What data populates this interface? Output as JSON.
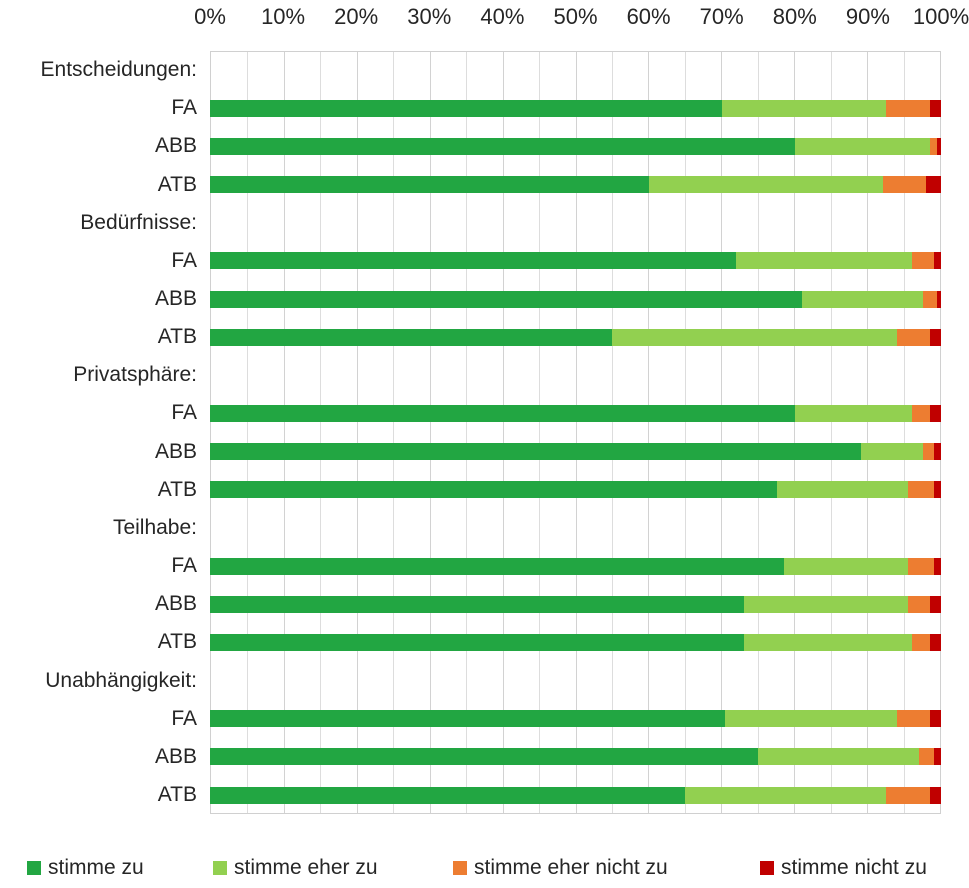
{
  "chart_data": {
    "type": "bar",
    "orientation": "horizontal",
    "stacked": true,
    "title": "",
    "xlabel": "",
    "ylabel": "",
    "xlim": [
      0,
      100
    ],
    "x_ticks": [
      "0%",
      "10%",
      "20%",
      "30%",
      "40%",
      "50%",
      "60%",
      "70%",
      "80%",
      "90%",
      "100%"
    ],
    "grid": "vertical gridlines every 5%",
    "legend_position": "bottom",
    "series": [
      {
        "name": "stimme zu",
        "color": "#22A642"
      },
      {
        "name": "stimme eher zu",
        "color": "#92D050"
      },
      {
        "name": "stimme eher nicht zu",
        "color": "#ED7D31"
      },
      {
        "name": "stimme nicht zu",
        "color": "#C00000"
      }
    ],
    "groups": [
      {
        "header": "Entscheidungen:",
        "rows": [
          {
            "label": "FA",
            "values": [
              70,
              22.5,
              6,
              1.5
            ]
          },
          {
            "label": "ABB",
            "values": [
              80,
              18.5,
              1,
              0.5
            ]
          },
          {
            "label": "ATB",
            "values": [
              60,
              32,
              6,
              2
            ]
          }
        ]
      },
      {
        "header": "Bedürfnisse:",
        "rows": [
          {
            "label": "FA",
            "values": [
              72,
              24,
              3,
              1
            ]
          },
          {
            "label": "ABB",
            "values": [
              81,
              16.5,
              2,
              0.5
            ]
          },
          {
            "label": "ATB",
            "values": [
              55,
              39,
              4.5,
              1.5
            ]
          }
        ]
      },
      {
        "header": "Privatsphäre:",
        "rows": [
          {
            "label": "FA",
            "values": [
              80,
              16,
              2.5,
              1.5
            ]
          },
          {
            "label": "ABB",
            "values": [
              89,
              8.5,
              1.5,
              1
            ]
          },
          {
            "label": "ATB",
            "values": [
              77.5,
              18,
              3.5,
              1
            ]
          }
        ]
      },
      {
        "header": "Teilhabe:",
        "rows": [
          {
            "label": "FA",
            "values": [
              78.5,
              17,
              3.5,
              1
            ]
          },
          {
            "label": "ABB",
            "values": [
              73,
              22.5,
              3,
              1.5
            ]
          },
          {
            "label": "ATB",
            "values": [
              73,
              23,
              2.5,
              1.5
            ]
          }
        ]
      },
      {
        "header": "Unabhängigkeit:",
        "rows": [
          {
            "label": "FA",
            "values": [
              70.5,
              23.5,
              4.5,
              1.5
            ]
          },
          {
            "label": "ABB",
            "values": [
              75,
              22,
              2,
              1
            ]
          },
          {
            "label": "ATB",
            "values": [
              65,
              27.5,
              6,
              1.5
            ]
          }
        ]
      }
    ]
  },
  "colors": {
    "background": "#FFFFFF",
    "gridline": "#DDDDDD",
    "plot_border": "#D0D0D0",
    "text": "#262626"
  }
}
